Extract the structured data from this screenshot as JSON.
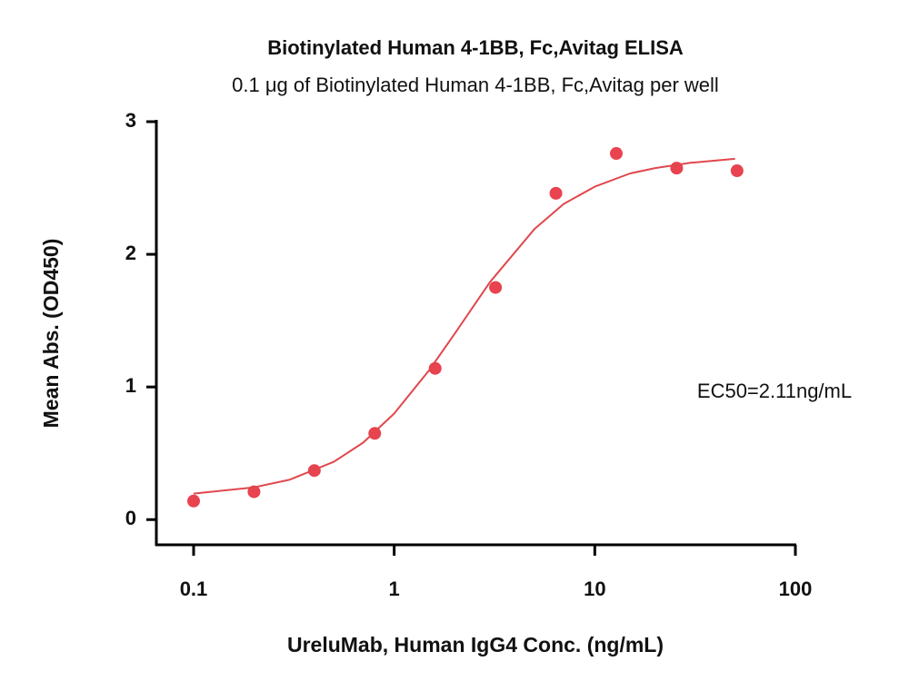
{
  "chart_data": {
    "type": "scatter",
    "title": "Biotinylated Human 4-1BB, Fc,Avitag ELISA",
    "subtitle": "0.1 μg of Biotinylated Human 4-1BB, Fc,Avitag per well",
    "x_label": "UreluMab, Human IgG4 Conc. (ng/mL)",
    "y_label": "Mean Abs. (OD450)",
    "annotation": "EC50=2.11ng/mL",
    "xscale": "log",
    "xlim": [
      0.0652,
      100
    ],
    "xticks": [
      0.1,
      1,
      10,
      100
    ],
    "ylim": [
      -0.19,
      3
    ],
    "yticks": [
      0,
      1,
      2,
      3
    ],
    "series": [
      {
        "name": "Mean Abs.",
        "kind": "points",
        "color": "#e8434e",
        "x": [
          0.1,
          0.2,
          0.4,
          0.8,
          1.6,
          3.2,
          6.4,
          12.8,
          25.6,
          51.2
        ],
        "values": [
          0.14,
          0.21,
          0.37,
          0.65,
          1.14,
          1.75,
          2.46,
          2.76,
          2.65,
          2.63
        ]
      },
      {
        "name": "Fit",
        "kind": "curve",
        "color": "#e0474c",
        "x": [
          0.1,
          0.2,
          0.3,
          0.5,
          0.7,
          1,
          1.5,
          2,
          3,
          5,
          7,
          10,
          15,
          20,
          30,
          50
        ],
        "values": [
          0.196,
          0.243,
          0.3,
          0.436,
          0.58,
          0.8,
          1.13,
          1.4,
          1.79,
          2.19,
          2.38,
          2.51,
          2.61,
          2.65,
          2.69,
          2.72
        ]
      }
    ]
  }
}
